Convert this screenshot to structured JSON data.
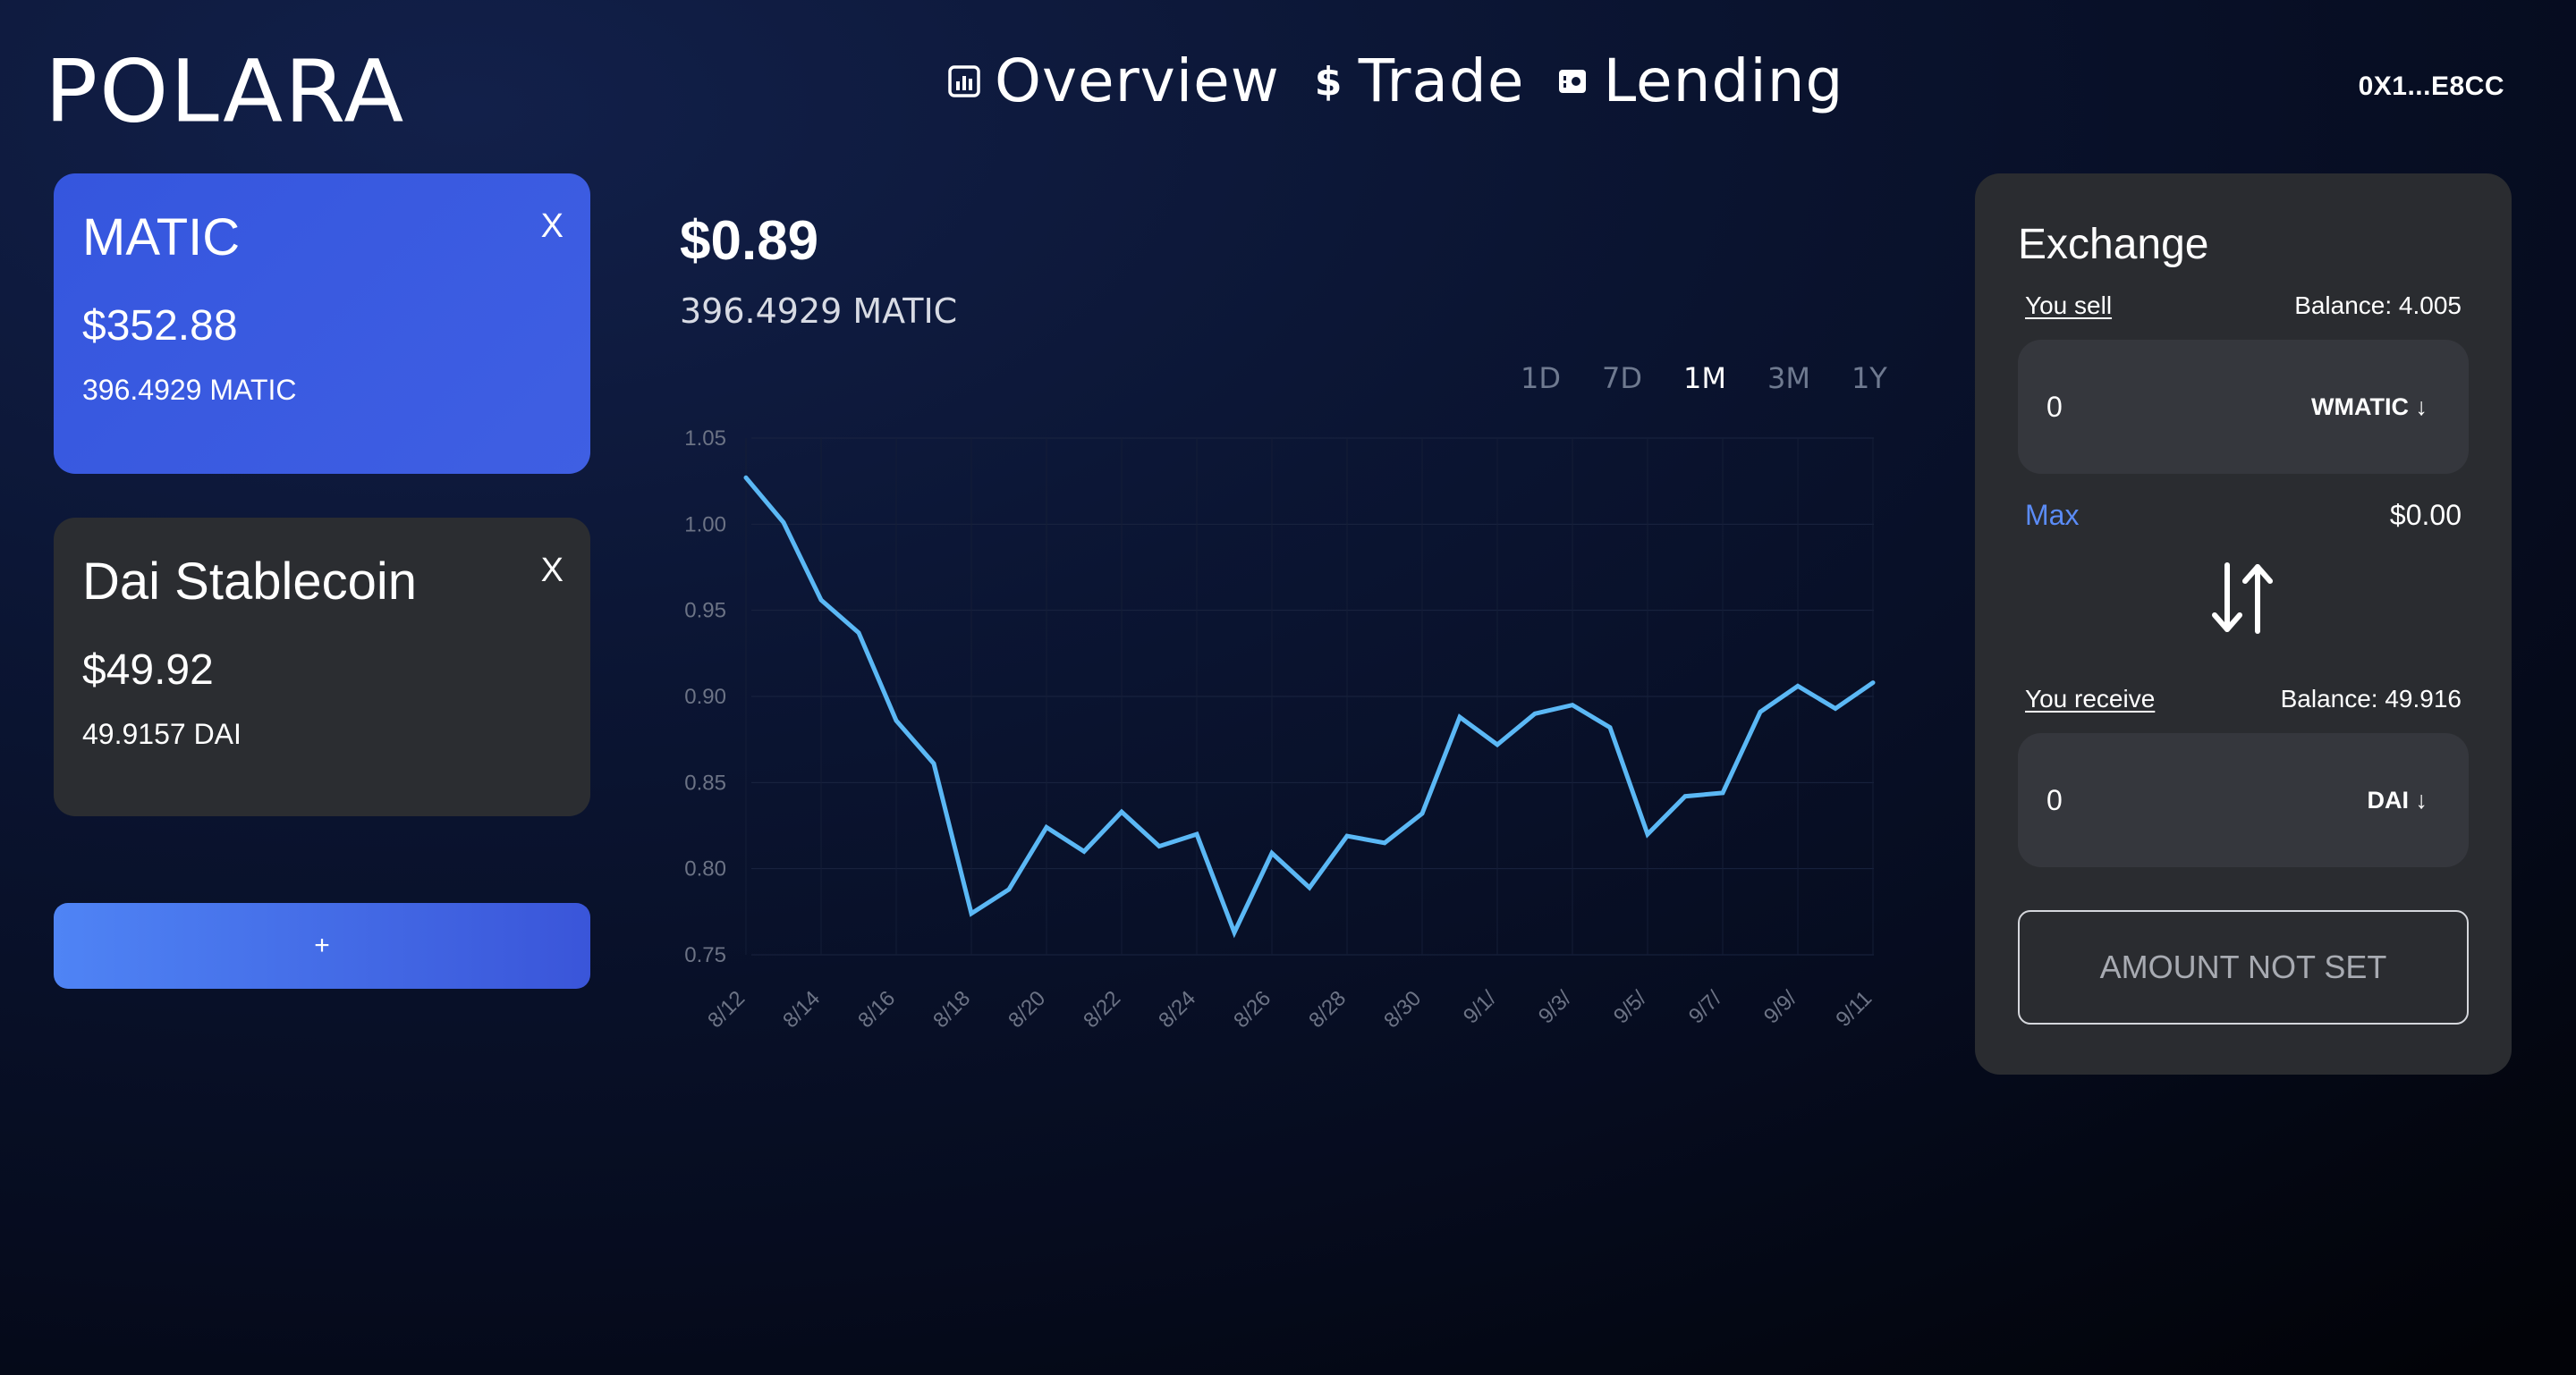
{
  "header": {
    "logo": "POLARA",
    "nav": [
      {
        "label": "Overview",
        "icon": "bar-chart-icon"
      },
      {
        "label": "Trade",
        "icon": "dollar-icon"
      },
      {
        "label": "Lending",
        "icon": "safe-icon"
      }
    ],
    "wallet": "0X1...E8CC"
  },
  "tokens": [
    {
      "name": "MATIC",
      "close": "X",
      "value": "$352.88",
      "amount": "396.4929 MATIC"
    },
    {
      "name": "Dai Stablecoin",
      "close": "X",
      "value": "$49.92",
      "amount": "49.9157 DAI"
    }
  ],
  "add_button": "+",
  "main": {
    "price": "$0.89",
    "holding": "396.4929 MATIC",
    "ranges": [
      "1D",
      "7D",
      "1M",
      "3M",
      "1Y"
    ],
    "selected_range": "1M"
  },
  "chart_data": {
    "type": "line",
    "x_tick_labels": [
      "8/12",
      "8/14",
      "8/16",
      "8/18",
      "8/20",
      "8/22",
      "8/24",
      "8/26",
      "8/28",
      "8/30",
      "9/1/",
      "9/3/",
      "9/5/",
      "9/7/",
      "9/9/",
      "9/11"
    ],
    "yticks": [
      0.75,
      0.8,
      0.85,
      0.9,
      0.95,
      1.0,
      1.05
    ],
    "ylim": [
      0.75,
      1.05
    ],
    "series": [
      {
        "color": "#5bb8f5",
        "values": [
          1.027,
          1.001,
          0.956,
          0.937,
          0.886,
          0.861,
          0.774,
          0.788,
          0.824,
          0.81,
          0.833,
          0.813,
          0.82,
          0.763,
          0.809,
          0.789,
          0.819,
          0.815,
          0.832,
          0.888,
          0.872,
          0.89,
          0.895,
          0.882,
          0.82,
          0.842,
          0.844,
          0.891,
          0.906,
          0.893,
          0.908
        ]
      }
    ],
    "grid": true
  },
  "exchange": {
    "title": "Exchange",
    "sell_label": "You sell",
    "sell_balance": "Balance: 4.005",
    "sell_value": "0",
    "sell_token": "WMATIC ↓",
    "max_label": "Max",
    "usd_value": "$0.00",
    "receive_label": "You receive",
    "receive_balance": "Balance: 49.916",
    "receive_value": "0",
    "receive_token": "DAI ↓",
    "submit": "AMOUNT NOT SET"
  }
}
